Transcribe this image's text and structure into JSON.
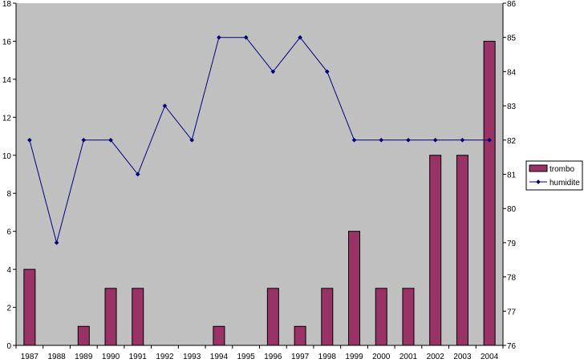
{
  "chart_data": {
    "type": "bar+line",
    "categories": [
      "1987",
      "1988",
      "1989",
      "1990",
      "1991",
      "1992",
      "1993",
      "1994",
      "1995",
      "1996",
      "1997",
      "1998",
      "1999",
      "2000",
      "2001",
      "2002",
      "2003",
      "2004"
    ],
    "series": [
      {
        "name": "trombo",
        "type": "bar",
        "axis": "left",
        "color": "#993366",
        "values": [
          4,
          0,
          1,
          3,
          3,
          0,
          0,
          1,
          0,
          3,
          1,
          3,
          6,
          3,
          3,
          10,
          10,
          16
        ]
      },
      {
        "name": "humidite",
        "type": "line",
        "axis": "right",
        "color": "#000080",
        "values": [
          82,
          79,
          82,
          82,
          81,
          83,
          82,
          85,
          85,
          84,
          85,
          84,
          82,
          82,
          82,
          82,
          82,
          82
        ]
      }
    ],
    "y_left": {
      "range": [
        0,
        18
      ],
      "ticks": [
        "0",
        "2",
        "4",
        "6",
        "8",
        "10",
        "12",
        "14",
        "16",
        "18"
      ]
    },
    "y_right": {
      "range": [
        76,
        86
      ],
      "ticks": [
        "76",
        "77",
        "78",
        "79",
        "80",
        "81",
        "82",
        "83",
        "84",
        "85",
        "86"
      ]
    },
    "plot_background": "#c0c0c0",
    "grid": false,
    "legend_position": "right"
  }
}
